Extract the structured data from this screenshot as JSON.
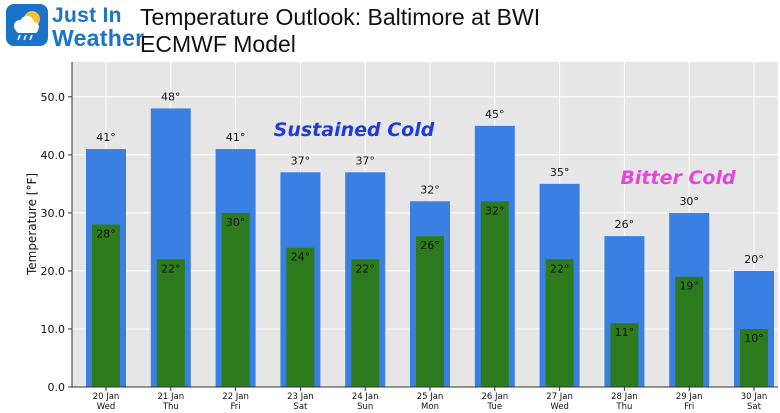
{
  "logo": {
    "line1": "Just In",
    "line2": "Weather"
  },
  "title": "Temperature Outlook: Baltimore at BWI",
  "subtitle": "ECMWF Model",
  "colors": {
    "plot_bg": "#e6e6e6",
    "high_bar": "#3a80e2",
    "low_bar": "#2e7b1e",
    "annotation_blue": "#1f3dd6",
    "annotation_magenta": "#e544e0",
    "logo_blue": "#1a72c9"
  },
  "annotations": [
    {
      "text": "Sustained Cold",
      "color": "#1f3dd6"
    },
    {
      "text": "Bitter Cold",
      "color": "#e544e0"
    }
  ],
  "chart_data": {
    "type": "bar",
    "categories": [
      "20 Jan\nWed",
      "21 Jan\nThu",
      "22 Jan\nFri",
      "23 Jan\nSat",
      "24 Jan\nSun",
      "25 Jan\nMon",
      "26 Jan\nTue",
      "27 Jan\nWed",
      "28 Jan\nThu",
      "29 Jan\nFri",
      "30 Jan\nSat"
    ],
    "series": [
      {
        "values": [
          41,
          48,
          41,
          37,
          37,
          32,
          45,
          35,
          26,
          30,
          20
        ],
        "color": "#3a80e2",
        "labels": [
          "41°",
          "48°",
          "41°",
          "37°",
          "37°",
          "32°",
          "45°",
          "35°",
          "26°",
          "30°",
          "20°"
        ]
      },
      {
        "values": [
          28,
          22,
          30,
          24,
          22,
          26,
          32,
          22,
          11,
          19,
          10
        ],
        "color": "#2e7b1e",
        "labels": [
          "28°",
          "22°",
          "30°",
          "24°",
          "22°",
          "26°",
          "32°",
          "22°",
          "11°",
          "19°",
          "10°"
        ]
      }
    ],
    "title": "Temperature Outlook: Baltimore at BWI",
    "subtitle": "ECMWF Model",
    "xlabel": "",
    "ylabel": "Temperature [°F]",
    "ylim": [
      0,
      56
    ],
    "yticks": [
      0,
      10,
      20,
      30,
      40,
      50
    ],
    "ytick_labels": [
      "0.0",
      "10.0",
      "20.0",
      "30.0",
      "40.0",
      "50.0"
    ],
    "grid": true
  }
}
